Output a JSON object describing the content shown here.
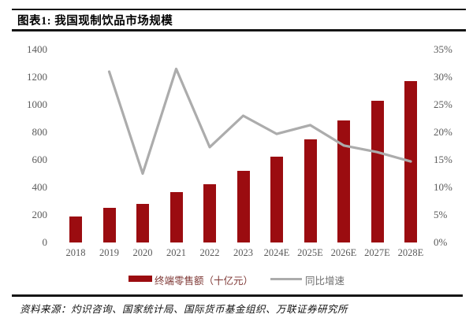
{
  "header": {
    "title": "图表1: 我国现制饮品市场规模"
  },
  "legend": {
    "bar_label": "终端零售额（十亿元）",
    "line_label": "同比增速"
  },
  "footer": {
    "source": "资料来源：灼识咨询、国家统计局、国际货币基金组织、万联证券研究所"
  },
  "colors": {
    "bar": "#9B0C10",
    "line": "#ACACAC",
    "axis_text": "#5a5a5a"
  },
  "chart_data": {
    "type": "bar",
    "title": "我国现制饮品市场规模",
    "categories": [
      "2018",
      "2019",
      "2020",
      "2021",
      "2022",
      "2023",
      "2024E",
      "2025E",
      "2026E",
      "2027E",
      "2028E"
    ],
    "series": [
      {
        "name": "终端零售额（十亿元）",
        "type": "bar",
        "axis": "left",
        "color": "#9B0C10",
        "values": [
          190,
          250,
          280,
          365,
          425,
          520,
          625,
          750,
          885,
          1030,
          1170
        ]
      },
      {
        "name": "同比增速",
        "type": "line",
        "axis": "right",
        "color": "#ACACAC",
        "values": [
          null,
          31,
          12.5,
          31.5,
          17.3,
          23,
          19.7,
          21.3,
          17.6,
          16.4,
          14.7
        ]
      }
    ],
    "y_left": {
      "label": "",
      "min": 0,
      "max": 1400,
      "step": 200,
      "ticks": [
        0,
        200,
        400,
        600,
        800,
        1000,
        1200,
        1400
      ]
    },
    "y_right": {
      "label": "",
      "min": 0,
      "max": 35,
      "step": 5,
      "ticks": [
        "0%",
        "5%",
        "10%",
        "15%",
        "20%",
        "25%",
        "30%",
        "35%"
      ]
    },
    "grid": false,
    "legend_position": "bottom"
  }
}
